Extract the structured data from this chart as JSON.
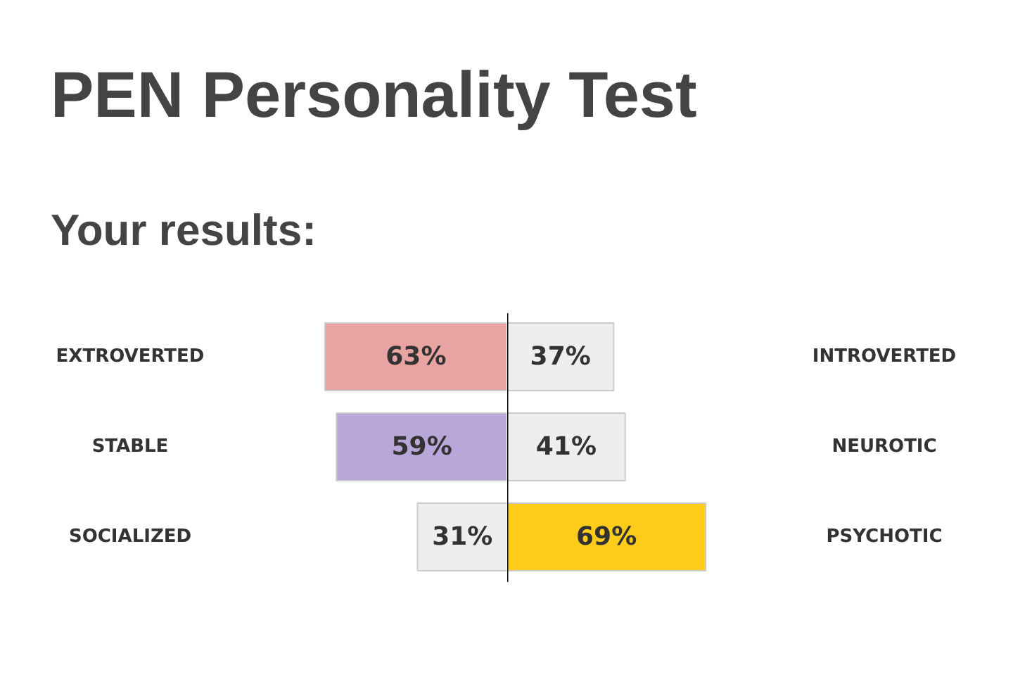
{
  "chart_data": [
    {
      "type": "bar",
      "orientation": "horizontal",
      "title": "PEN Personality Test",
      "subtitle": "Your results:",
      "categories": [
        "EXTROVERTED",
        "STABLE",
        "SOCIALIZED"
      ],
      "xlim": [
        175,
        0
      ],
      "tick_labels": false,
      "colors": [
        "#e9a3a3",
        "#b9a7d9",
        "#eeeeee"
      ],
      "values": [
        63,
        59,
        31
      ],
      "value_labels": [
        "63%",
        "59%",
        "31%"
      ]
    },
    {
      "type": "bar",
      "orientation": "horizontal",
      "categories": [
        "INTROVERTED",
        "NEUROTIC",
        "PSYCHOTIC"
      ],
      "xlim": [
        0,
        176
      ],
      "tick_labels": false,
      "colors": [
        "#eeeeee",
        "#eeeeee",
        "#ffcc1a"
      ],
      "values": [
        37,
        41,
        69
      ],
      "value_labels": [
        "37%",
        "41%",
        "69%"
      ]
    }
  ]
}
